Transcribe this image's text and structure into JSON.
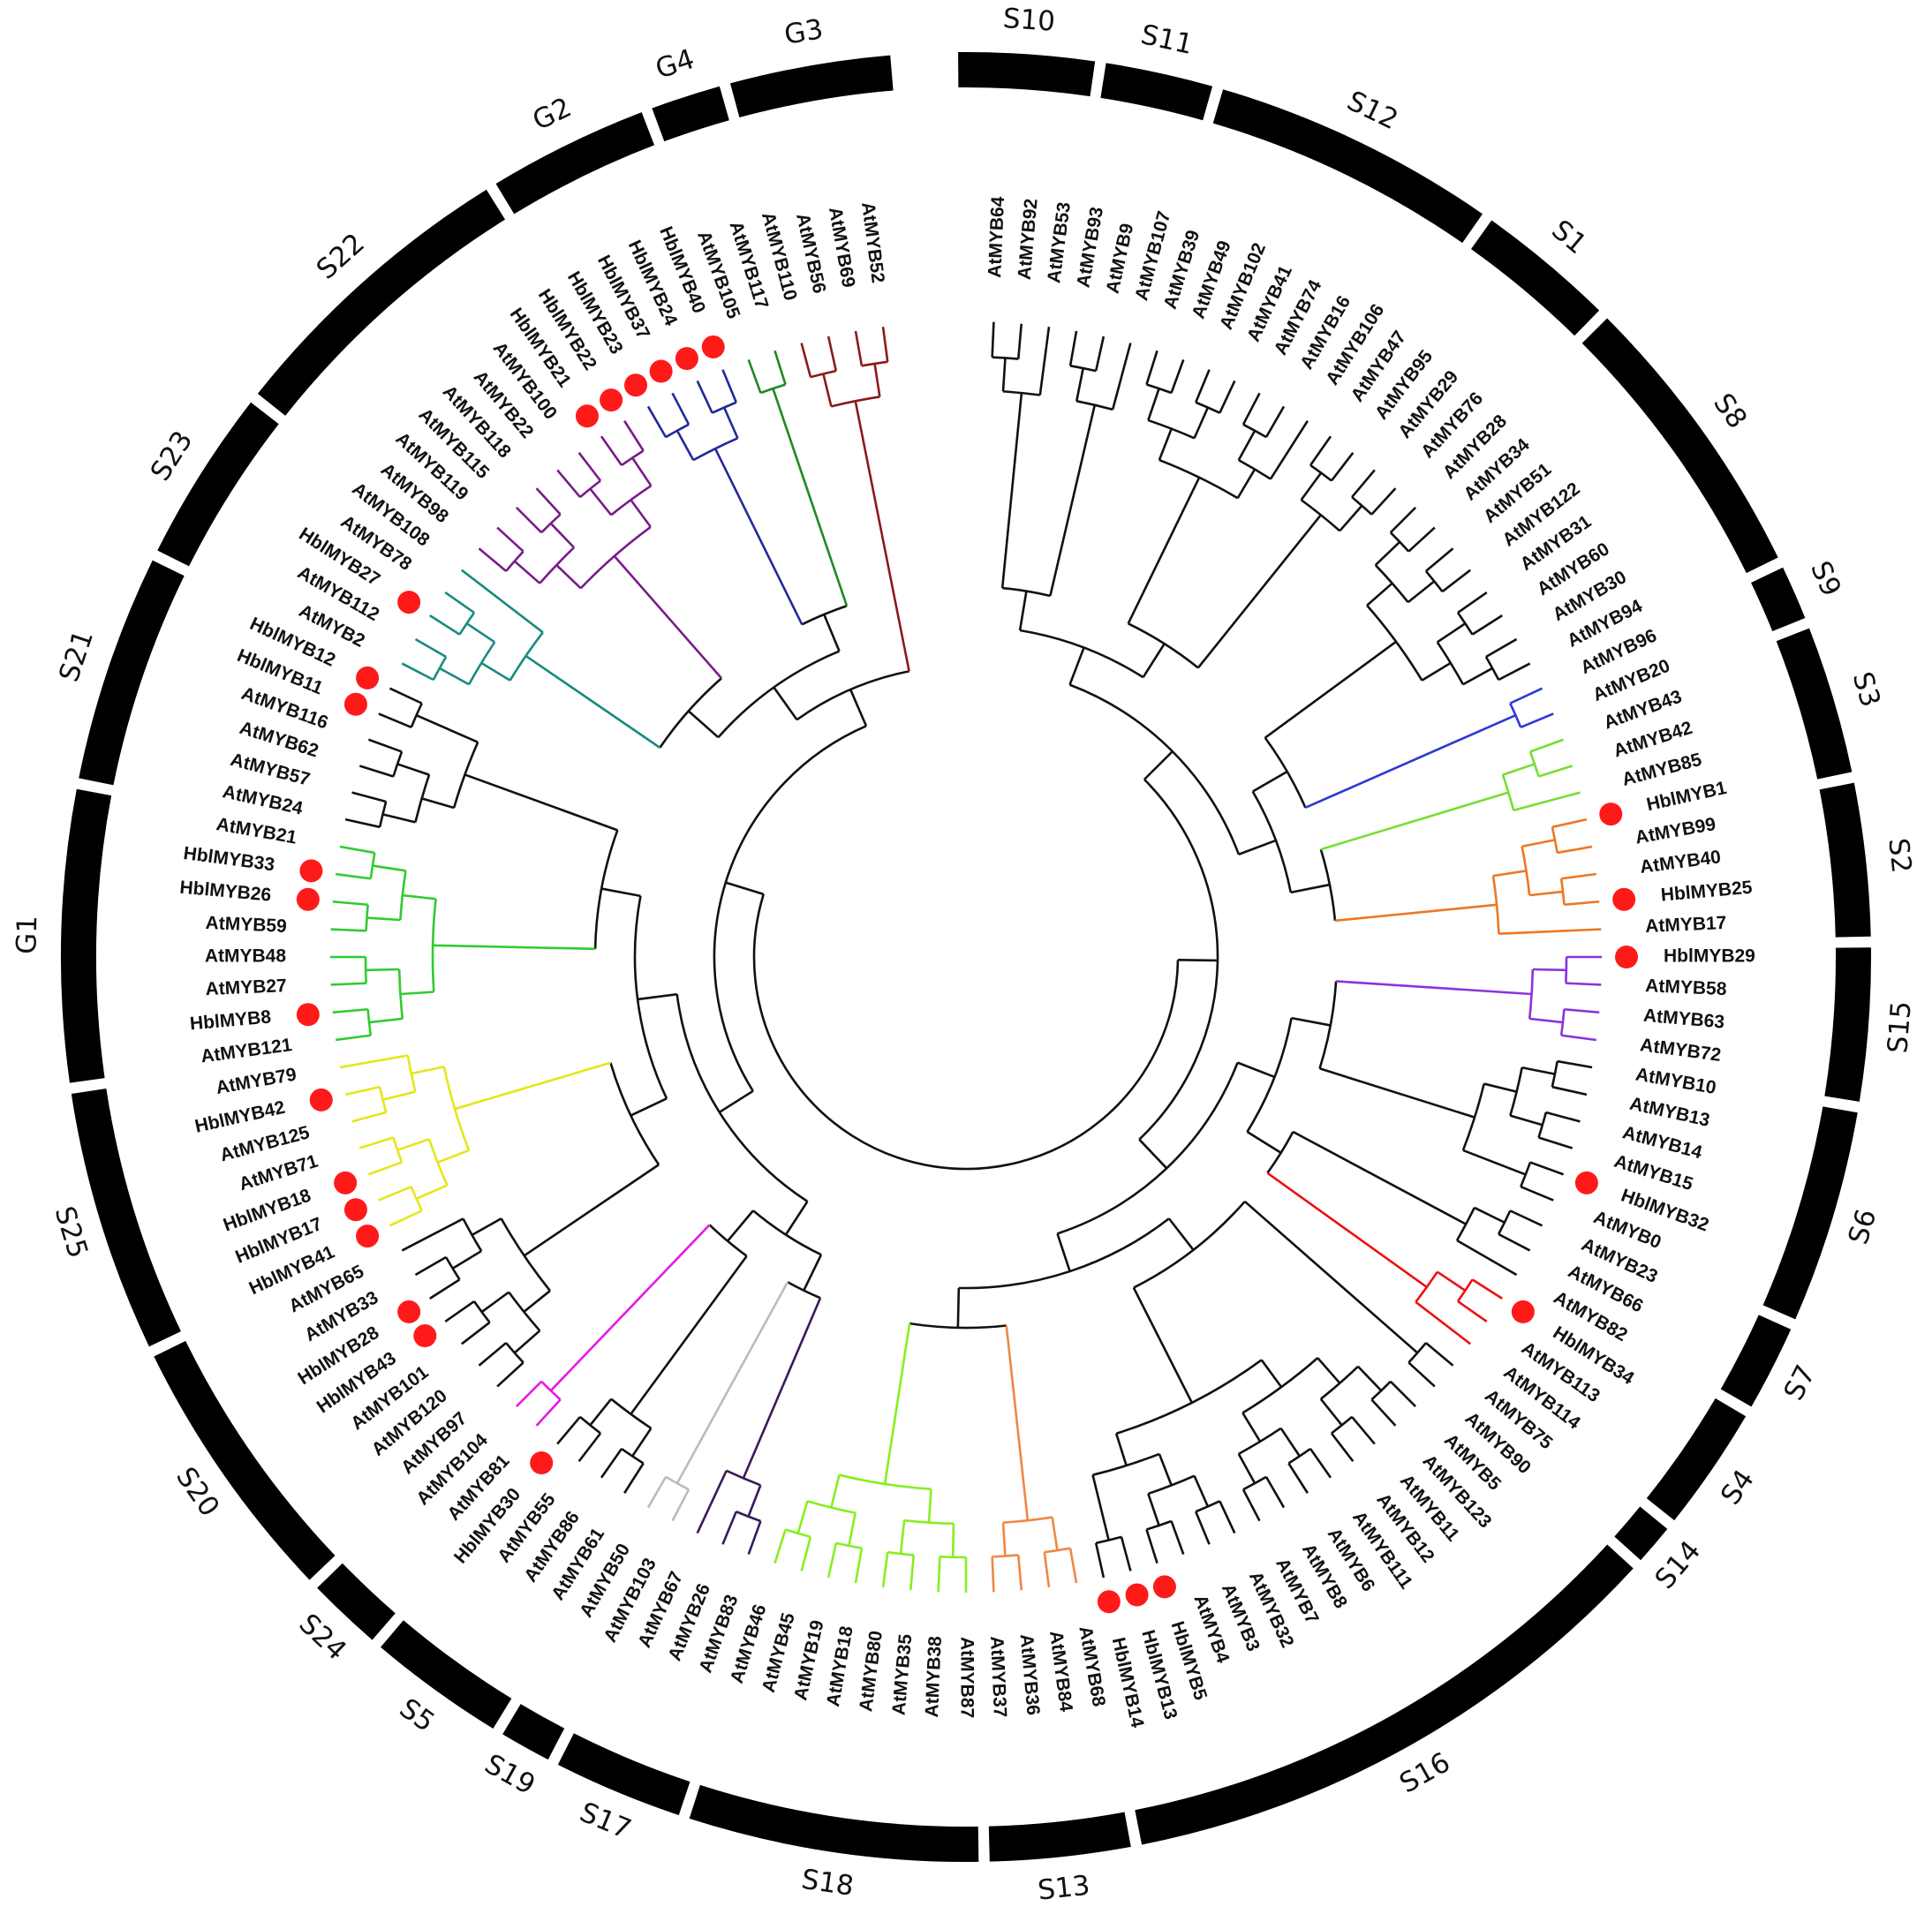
{
  "colors": {
    "background": "#ffffff",
    "ring": "#000000",
    "text": "#111111",
    "marker": "#ff1a1a",
    "default_branch": "#111111"
  },
  "marker_icon": "red-circle-marker",
  "group_colors": {
    "G3": "#8b1a1a",
    "G4": "#1f8a1f",
    "G2": "#1f2a9a",
    "S22": "#7a1a8a",
    "S23": "#1a8a80",
    "G1": "#2ecc2e",
    "S25": "#e6e619",
    "S24": "#e619e6",
    "S19": "#bbbbbb",
    "S17": "#3a1a5a",
    "S18": "#88ee22",
    "S13": "#ee8844",
    "S4": "#ee1111",
    "S15": "#8a33dd",
    "S2": "#ee7722",
    "S3": "#77dd33",
    "S9": "#2a3ad0"
  },
  "groups": [
    {
      "name": "S10",
      "start": -90.5,
      "end": -81.8
    },
    {
      "name": "S11",
      "start": -81.1,
      "end": -74.2
    },
    {
      "name": "S12",
      "start": -73.5,
      "end": -55.2
    },
    {
      "name": "S1",
      "start": -54.5,
      "end": -45.6
    },
    {
      "name": "S8",
      "start": -44.9,
      "end": -26.2
    },
    {
      "name": "S9",
      "start": -25.5,
      "end": -22.0
    },
    {
      "name": "S3",
      "start": -21.3,
      "end": -11.8
    },
    {
      "name": "S2",
      "start": -11.1,
      "end": -1.3
    },
    {
      "name": "S15",
      "start": -0.6,
      "end": 9.2
    },
    {
      "name": "S6",
      "start": 9.9,
      "end": 23.6
    },
    {
      "name": "S7",
      "start": 24.3,
      "end": 29.8
    },
    {
      "name": "S4",
      "start": 30.5,
      "end": 38.5
    },
    {
      "name": "S14",
      "start": 39.2,
      "end": 41.8
    },
    {
      "name": "S16",
      "start": 42.5,
      "end": 78.8
    },
    {
      "name": "S13",
      "start": 79.5,
      "end": 88.5
    },
    {
      "name": "S18",
      "start": 89.2,
      "end": 107.8
    },
    {
      "name": "S17",
      "start": 108.5,
      "end": 116.8
    },
    {
      "name": "S19",
      "start": 117.5,
      "end": 120.8
    },
    {
      "name": "S5",
      "start": 121.5,
      "end": 130.3
    },
    {
      "name": "S24",
      "start": 131.0,
      "end": 135.8
    },
    {
      "name": "S20",
      "start": 136.5,
      "end": 153.8
    },
    {
      "name": "S25",
      "start": 154.5,
      "end": 171.3
    },
    {
      "name": "G1",
      "start": 172.0,
      "end": 190.7
    },
    {
      "name": "S21",
      "start": 191.4,
      "end": 206.0
    },
    {
      "name": "S23",
      "start": 206.7,
      "end": 217.8
    },
    {
      "name": "S22",
      "start": 218.5,
      "end": 238.0
    },
    {
      "name": "G2",
      "start": 238.7,
      "end": 249.0
    },
    {
      "name": "G4",
      "start": 249.7,
      "end": 254.2
    },
    {
      "name": "G3",
      "start": 254.9,
      "end": 265.2
    }
  ],
  "leaves": [
    {
      "name": "AtMYB64",
      "angle": -87.5,
      "group": "S10",
      "marker": false
    },
    {
      "name": "AtMYB92",
      "angle": -85.0,
      "group": "S10",
      "marker": false
    },
    {
      "name": "AtMYB53",
      "angle": -82.5,
      "group": "S10",
      "marker": false
    },
    {
      "name": "AtMYB93",
      "angle": -80.0,
      "group": "S11",
      "marker": false
    },
    {
      "name": "AtMYB9",
      "angle": -77.5,
      "group": "S11",
      "marker": false
    },
    {
      "name": "AtMYB107",
      "angle": -75.0,
      "group": "S11",
      "marker": false
    },
    {
      "name": "AtMYB39",
      "angle": -72.5,
      "group": "S12",
      "marker": false
    },
    {
      "name": "AtMYB49",
      "angle": -70.0,
      "group": "S12",
      "marker": false
    },
    {
      "name": "AtMYB102",
      "angle": -67.5,
      "group": "S12",
      "marker": false
    },
    {
      "name": "AtMYB41",
      "angle": -65.0,
      "group": "S12",
      "marker": false
    },
    {
      "name": "AtMYB74",
      "angle": -62.5,
      "group": "S12",
      "marker": false
    },
    {
      "name": "AtMYB16",
      "angle": -60.0,
      "group": "S12",
      "marker": false
    },
    {
      "name": "AtMYB106",
      "angle": -57.5,
      "group": "S12",
      "marker": false
    },
    {
      "name": "AtMYB47",
      "angle": -55.0,
      "group": "S1",
      "marker": false
    },
    {
      "name": "AtMYB95",
      "angle": -52.5,
      "group": "S1",
      "marker": false
    },
    {
      "name": "AtMYB29",
      "angle": -50.0,
      "group": "S1",
      "marker": false
    },
    {
      "name": "AtMYB76",
      "angle": -47.5,
      "group": "S1",
      "marker": false
    },
    {
      "name": "AtMYB28",
      "angle": -45.0,
      "group": "S8",
      "marker": false
    },
    {
      "name": "AtMYB34",
      "angle": -42.5,
      "group": "S8",
      "marker": false
    },
    {
      "name": "AtMYB51",
      "angle": -40.0,
      "group": "S8",
      "marker": false
    },
    {
      "name": "AtMYB122",
      "angle": -37.5,
      "group": "S8",
      "marker": false
    },
    {
      "name": "AtMYB31",
      "angle": -35.0,
      "group": "S8",
      "marker": false
    },
    {
      "name": "AtMYB60",
      "angle": -32.5,
      "group": "S8",
      "marker": false
    },
    {
      "name": "AtMYB30",
      "angle": -30.0,
      "group": "S8",
      "marker": false
    },
    {
      "name": "AtMYB94",
      "angle": -27.5,
      "group": "S8",
      "marker": false
    },
    {
      "name": "AtMYB96",
      "angle": -25.0,
      "group": "S9",
      "marker": false
    },
    {
      "name": "AtMYB20",
      "angle": -22.5,
      "group": "S9",
      "marker": false
    },
    {
      "name": "AtMYB43",
      "angle": -20.0,
      "group": "S3",
      "marker": false
    },
    {
      "name": "AtMYB42",
      "angle": -17.5,
      "group": "S3",
      "marker": false
    },
    {
      "name": "AtMYB85",
      "angle": -15.0,
      "group": "S3",
      "marker": false
    },
    {
      "name": "HblMYB1",
      "angle": -12.5,
      "group": "S2",
      "marker": true
    },
    {
      "name": "AtMYB99",
      "angle": -10.0,
      "group": "S2",
      "marker": false
    },
    {
      "name": "AtMYB40",
      "angle": -7.5,
      "group": "S2",
      "marker": false
    },
    {
      "name": "HblMYB25",
      "angle": -5.0,
      "group": "S2",
      "marker": true
    },
    {
      "name": "AtMYB17",
      "angle": -2.5,
      "group": "S2",
      "marker": false
    },
    {
      "name": "HblMYB29",
      "angle": 0.0,
      "group": "S15",
      "marker": true
    },
    {
      "name": "AtMYB58",
      "angle": 2.5,
      "group": "S15",
      "marker": false
    },
    {
      "name": "AtMYB63",
      "angle": 5.0,
      "group": "S15",
      "marker": false
    },
    {
      "name": "AtMYB72",
      "angle": 7.5,
      "group": "S15",
      "marker": false
    },
    {
      "name": "AtMYB10",
      "angle": 10.0,
      "group": "S6",
      "marker": false
    },
    {
      "name": "AtMYB13",
      "angle": 12.5,
      "group": "S6",
      "marker": false
    },
    {
      "name": "AtMYB14",
      "angle": 15.0,
      "group": "S6",
      "marker": false
    },
    {
      "name": "AtMYB15",
      "angle": 17.5,
      "group": "S6",
      "marker": false
    },
    {
      "name": "HblMYB32",
      "angle": 20.0,
      "group": "S6",
      "marker": true
    },
    {
      "name": "AtMYB0",
      "angle": 22.5,
      "group": "S6",
      "marker": false
    },
    {
      "name": "AtMYB23",
      "angle": 25.0,
      "group": "S7",
      "marker": false
    },
    {
      "name": "AtMYB66",
      "angle": 27.5,
      "group": "S7",
      "marker": false
    },
    {
      "name": "AtMYB82",
      "angle": 30.0,
      "group": "S7",
      "marker": false
    },
    {
      "name": "HblMYB34",
      "angle": 32.5,
      "group": "S4",
      "marker": true
    },
    {
      "name": "AtMYB113",
      "angle": 35.0,
      "group": "S4",
      "marker": false
    },
    {
      "name": "AtMYB114",
      "angle": 37.5,
      "group": "S4",
      "marker": false
    },
    {
      "name": "AtMYB75",
      "angle": 40.0,
      "group": "S14",
      "marker": false
    },
    {
      "name": "AtMYB90",
      "angle": 42.5,
      "group": "S14",
      "marker": false
    },
    {
      "name": "AtMYB5",
      "angle": 45.0,
      "group": "S16",
      "marker": false
    },
    {
      "name": "AtMYB123",
      "angle": 47.5,
      "group": "S16",
      "marker": false
    },
    {
      "name": "AtMYB11",
      "angle": 50.0,
      "group": "S16",
      "marker": false
    },
    {
      "name": "AtMYB12",
      "angle": 52.5,
      "group": "S16",
      "marker": false
    },
    {
      "name": "AtMYB111",
      "angle": 55.0,
      "group": "S16",
      "marker": false
    },
    {
      "name": "AtMYB6",
      "angle": 57.5,
      "group": "S16",
      "marker": false
    },
    {
      "name": "AtMYB8",
      "angle": 60.0,
      "group": "S16",
      "marker": false
    },
    {
      "name": "AtMYB7",
      "angle": 62.5,
      "group": "S16",
      "marker": false
    },
    {
      "name": "AtMYB32",
      "angle": 65.0,
      "group": "S16",
      "marker": false
    },
    {
      "name": "AtMYB3",
      "angle": 67.5,
      "group": "S16",
      "marker": false
    },
    {
      "name": "AtMYB4",
      "angle": 70.0,
      "group": "S16",
      "marker": false
    },
    {
      "name": "HblMYB5",
      "angle": 72.5,
      "group": "S16",
      "marker": true
    },
    {
      "name": "HblMYB13",
      "angle": 75.0,
      "group": "S16",
      "marker": true
    },
    {
      "name": "HblMYB14",
      "angle": 77.5,
      "group": "S16",
      "marker": true
    },
    {
      "name": "AtMYB68",
      "angle": 80.0,
      "group": "S13",
      "marker": false
    },
    {
      "name": "AtMYB84",
      "angle": 82.5,
      "group": "S13",
      "marker": false
    },
    {
      "name": "AtMYB36",
      "angle": 85.0,
      "group": "S13",
      "marker": false
    },
    {
      "name": "AtMYB37",
      "angle": 87.5,
      "group": "S13",
      "marker": false
    },
    {
      "name": "AtMYB87",
      "angle": 90.0,
      "group": "S18",
      "marker": false
    },
    {
      "name": "AtMYB38",
      "angle": 92.5,
      "group": "S18",
      "marker": false
    },
    {
      "name": "AtMYB35",
      "angle": 95.0,
      "group": "S18",
      "marker": false
    },
    {
      "name": "AtMYB80",
      "angle": 97.5,
      "group": "S18",
      "marker": false
    },
    {
      "name": "AtMYB18",
      "angle": 100.0,
      "group": "S18",
      "marker": false
    },
    {
      "name": "AtMYB19",
      "angle": 102.5,
      "group": "S18",
      "marker": false
    },
    {
      "name": "AtMYB45",
      "angle": 105.0,
      "group": "S18",
      "marker": false
    },
    {
      "name": "AtMYB46",
      "angle": 107.5,
      "group": "S18",
      "marker": false
    },
    {
      "name": "AtMYB83",
      "angle": 110.0,
      "group": "S17",
      "marker": false
    },
    {
      "name": "AtMYB26",
      "angle": 112.5,
      "group": "S17",
      "marker": false
    },
    {
      "name": "AtMYB67",
      "angle": 115.0,
      "group": "S17",
      "marker": false
    },
    {
      "name": "AtMYB103",
      "angle": 117.5,
      "group": "S19",
      "marker": false
    },
    {
      "name": "AtMYB50",
      "angle": 120.0,
      "group": "S19",
      "marker": false
    },
    {
      "name": "AtMYB61",
      "angle": 122.5,
      "group": "S5",
      "marker": false
    },
    {
      "name": "AtMYB86",
      "angle": 125.0,
      "group": "S5",
      "marker": false
    },
    {
      "name": "AtMYB55",
      "angle": 127.5,
      "group": "S5",
      "marker": false
    },
    {
      "name": "HblMYB30",
      "angle": 130.0,
      "group": "S5",
      "marker": true
    },
    {
      "name": "AtMYB81",
      "angle": 132.5,
      "group": "S24",
      "marker": false
    },
    {
      "name": "AtMYB104",
      "angle": 135.0,
      "group": "S24",
      "marker": false
    },
    {
      "name": "AtMYB97",
      "angle": 137.5,
      "group": "S20",
      "marker": false
    },
    {
      "name": "AtMYB120",
      "angle": 140.0,
      "group": "S20",
      "marker": false
    },
    {
      "name": "AtMYB101",
      "angle": 142.5,
      "group": "S20",
      "marker": false
    },
    {
      "name": "HblMYB43",
      "angle": 145.0,
      "group": "S20",
      "marker": true
    },
    {
      "name": "HblMYB28",
      "angle": 147.5,
      "group": "S20",
      "marker": true
    },
    {
      "name": "AtMYB33",
      "angle": 150.0,
      "group": "S20",
      "marker": false
    },
    {
      "name": "AtMYB65",
      "angle": 152.5,
      "group": "S20",
      "marker": false
    },
    {
      "name": "HblMYB41",
      "angle": 155.0,
      "group": "S25",
      "marker": true
    },
    {
      "name": "HblMYB17",
      "angle": 157.5,
      "group": "S25",
      "marker": true
    },
    {
      "name": "HblMYB18",
      "angle": 160.0,
      "group": "S25",
      "marker": true
    },
    {
      "name": "AtMYB71",
      "angle": 162.5,
      "group": "S25",
      "marker": false
    },
    {
      "name": "AtMYB125",
      "angle": 165.0,
      "group": "S25",
      "marker": false
    },
    {
      "name": "HblMYB42",
      "angle": 167.5,
      "group": "S25",
      "marker": true
    },
    {
      "name": "AtMYB79",
      "angle": 170.0,
      "group": "S25",
      "marker": false
    },
    {
      "name": "AtMYB121",
      "angle": 172.5,
      "group": "G1",
      "marker": false
    },
    {
      "name": "HblMYB8",
      "angle": 175.0,
      "group": "G1",
      "marker": true
    },
    {
      "name": "AtMYB27",
      "angle": 177.5,
      "group": "G1",
      "marker": false
    },
    {
      "name": "AtMYB48",
      "angle": 180.0,
      "group": "G1",
      "marker": false
    },
    {
      "name": "AtMYB59",
      "angle": 182.5,
      "group": "G1",
      "marker": false
    },
    {
      "name": "HblMYB26",
      "angle": 185.0,
      "group": "G1",
      "marker": true
    },
    {
      "name": "HblMYB33",
      "angle": 187.5,
      "group": "G1",
      "marker": true
    },
    {
      "name": "AtMYB21",
      "angle": 190.0,
      "group": "G1",
      "marker": false
    },
    {
      "name": "AtMYB24",
      "angle": 192.5,
      "group": "S21",
      "marker": false
    },
    {
      "name": "AtMYB57",
      "angle": 195.0,
      "group": "S21",
      "marker": false
    },
    {
      "name": "AtMYB62",
      "angle": 197.5,
      "group": "S21",
      "marker": false
    },
    {
      "name": "AtMYB116",
      "angle": 200.0,
      "group": "S21",
      "marker": false
    },
    {
      "name": "HblMYB11",
      "angle": 202.5,
      "group": "S21",
      "marker": true
    },
    {
      "name": "HblMYB12",
      "angle": 205.0,
      "group": "S21",
      "marker": true
    },
    {
      "name": "AtMYB2",
      "angle": 207.5,
      "group": "S23",
      "marker": false
    },
    {
      "name": "AtMYB112",
      "angle": 210.0,
      "group": "S23",
      "marker": false
    },
    {
      "name": "HblMYB27",
      "angle": 212.5,
      "group": "S23",
      "marker": true
    },
    {
      "name": "AtMYB78",
      "angle": 215.0,
      "group": "S23",
      "marker": false
    },
    {
      "name": "AtMYB108",
      "angle": 217.5,
      "group": "S23",
      "marker": false
    },
    {
      "name": "AtMYB98",
      "angle": 220.0,
      "group": "S22",
      "marker": false
    },
    {
      "name": "AtMYB119",
      "angle": 222.5,
      "group": "S22",
      "marker": false
    },
    {
      "name": "AtMYB115",
      "angle": 225.0,
      "group": "S22",
      "marker": false
    },
    {
      "name": "AtMYB118",
      "angle": 227.5,
      "group": "S22",
      "marker": false
    },
    {
      "name": "AtMYB22",
      "angle": 230.0,
      "group": "S22",
      "marker": false
    },
    {
      "name": "AtMYB100",
      "angle": 232.5,
      "group": "S22",
      "marker": false
    },
    {
      "name": "HblMYB21",
      "angle": 235.0,
      "group": "S22",
      "marker": true
    },
    {
      "name": "HblMYB22",
      "angle": 237.5,
      "group": "S22",
      "marker": true
    },
    {
      "name": "HblMYB23",
      "angle": 240.0,
      "group": "G2",
      "marker": true
    },
    {
      "name": "HblMYB37",
      "angle": 242.5,
      "group": "G2",
      "marker": true
    },
    {
      "name": "HblMYB24",
      "angle": 245.0,
      "group": "G2",
      "marker": true
    },
    {
      "name": "HblMYB40",
      "angle": 247.5,
      "group": "G2",
      "marker": true
    },
    {
      "name": "AtMYB105",
      "angle": 250.0,
      "group": "G4",
      "marker": false
    },
    {
      "name": "AtMYB117",
      "angle": 252.5,
      "group": "G4",
      "marker": false
    },
    {
      "name": "AtMYB110",
      "angle": 255.0,
      "group": "G3",
      "marker": false
    },
    {
      "name": "AtMYB56",
      "angle": 257.5,
      "group": "G3",
      "marker": false
    },
    {
      "name": "AtMYB69",
      "angle": 260.0,
      "group": "G3",
      "marker": false
    },
    {
      "name": "AtMYB52",
      "angle": 262.5,
      "group": "G3",
      "marker": false
    }
  ]
}
